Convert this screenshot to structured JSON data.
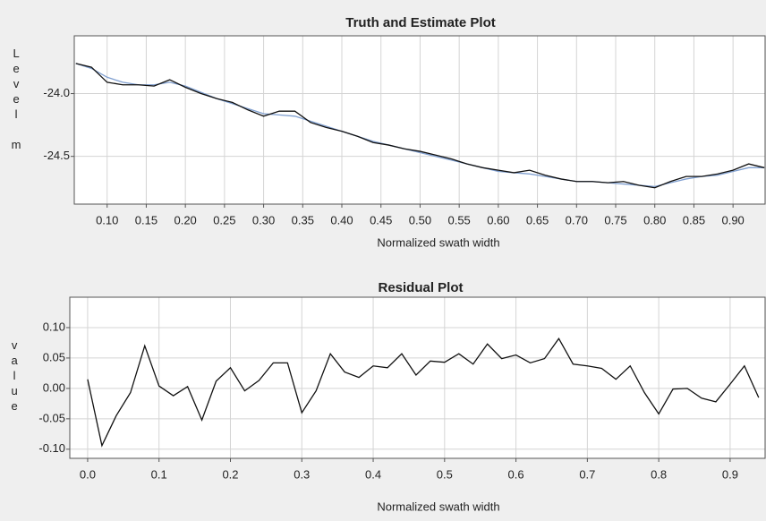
{
  "chart_data": [
    {
      "type": "line",
      "title": "Truth and Estimate Plot",
      "y_label": "Level m",
      "x_label": "Normalized swath width",
      "x": [
        0.06,
        0.08,
        0.1,
        0.12,
        0.14,
        0.16,
        0.18,
        0.2,
        0.22,
        0.24,
        0.26,
        0.28,
        0.3,
        0.32,
        0.34,
        0.36,
        0.38,
        0.4,
        0.42,
        0.44,
        0.46,
        0.48,
        0.5,
        0.52,
        0.54,
        0.56,
        0.58,
        0.6,
        0.62,
        0.64,
        0.66,
        0.68,
        0.7,
        0.72,
        0.74,
        0.76,
        0.78,
        0.8,
        0.82,
        0.84,
        0.86,
        0.88,
        0.9,
        0.92,
        0.94
      ],
      "series": [
        {
          "color": "#7f9fd0",
          "values": [
            -23.76,
            -23.8,
            -23.87,
            -23.91,
            -23.93,
            -23.93,
            -23.91,
            -23.94,
            -23.99,
            -24.04,
            -24.08,
            -24.12,
            -24.16,
            -24.17,
            -24.18,
            -24.22,
            -24.26,
            -24.3,
            -24.34,
            -24.38,
            -24.41,
            -24.44,
            -24.47,
            -24.5,
            -24.53,
            -24.56,
            -24.59,
            -24.62,
            -24.63,
            -24.64,
            -24.66,
            -24.68,
            -24.7,
            -24.7,
            -24.71,
            -24.72,
            -24.73,
            -24.74,
            -24.71,
            -24.68,
            -24.66,
            -24.65,
            -24.62,
            -24.59,
            -24.59
          ]
        },
        {
          "color": "#111111",
          "values": [
            -23.76,
            -23.79,
            -23.91,
            -23.93,
            -23.93,
            -23.94,
            -23.89,
            -23.95,
            -24.0,
            -24.04,
            -24.07,
            -24.13,
            -24.18,
            -24.14,
            -24.14,
            -24.23,
            -24.27,
            -24.3,
            -24.34,
            -24.39,
            -24.41,
            -24.44,
            -24.46,
            -24.49,
            -24.52,
            -24.56,
            -24.59,
            -24.61,
            -24.63,
            -24.61,
            -24.65,
            -24.68,
            -24.7,
            -24.7,
            -24.71,
            -24.7,
            -24.73,
            -24.75,
            -24.7,
            -24.66,
            -24.66,
            -24.64,
            -24.61,
            -24.56,
            -24.59
          ]
        }
      ],
      "xlim": [
        0.058,
        0.941
      ],
      "ylim": [
        -24.88,
        -23.54
      ],
      "xticks": [
        {
          "value": 0.1,
          "label": "0.10"
        },
        0.15,
        {
          "value": 0.2,
          "label": "0.20"
        },
        0.25,
        {
          "value": 0.3,
          "label": "0.30"
        },
        0.35,
        {
          "value": 0.4,
          "label": "0.40"
        },
        0.45,
        {
          "value": 0.5,
          "label": "0.50"
        },
        0.55,
        {
          "value": 0.6,
          "label": "0.60"
        },
        0.65,
        {
          "value": 0.7,
          "label": "0.70"
        },
        0.75,
        {
          "value": 0.8,
          "label": "0.80"
        },
        0.85,
        {
          "value": 0.9,
          "label": "0.90"
        }
      ],
      "yticks": [
        {
          "value": -24,
          "label": "-24.0"
        },
        {
          "value": -24.5,
          "label": "-24.5"
        }
      ],
      "grid": true
    },
    {
      "type": "line",
      "title": "Residual Plot",
      "y_label": "value",
      "x_label": "Normalized swath width",
      "x": [
        0.0,
        0.02,
        0.04,
        0.06,
        0.08,
        0.1,
        0.12,
        0.14,
        0.16,
        0.18,
        0.2,
        0.22,
        0.24,
        0.26,
        0.28,
        0.3,
        0.32,
        0.34,
        0.36,
        0.38,
        0.4,
        0.42,
        0.44,
        0.46,
        0.48,
        0.5,
        0.52,
        0.54,
        0.56,
        0.58,
        0.6,
        0.62,
        0.64,
        0.66,
        0.68,
        0.7,
        0.72,
        0.74,
        0.76,
        0.78,
        0.8,
        0.82,
        0.84,
        0.86,
        0.88,
        0.9,
        0.92,
        0.94
      ],
      "series": [
        {
          "color": "#111111",
          "values": [
            0.015,
            -0.094,
            -0.045,
            -0.007,
            0.07,
            0.004,
            -0.012,
            0.003,
            -0.052,
            0.012,
            0.034,
            -0.004,
            0.013,
            0.042,
            0.042,
            -0.04,
            -0.004,
            0.057,
            0.027,
            0.018,
            0.037,
            0.034,
            0.057,
            0.022,
            0.045,
            0.043,
            0.057,
            0.04,
            0.073,
            0.049,
            0.055,
            0.042,
            0.049,
            0.082,
            0.04,
            0.037,
            0.033,
            0.015,
            0.037,
            -0.007,
            -0.042,
            -0.001,
            0,
            -0.016,
            -0.022,
            0.007,
            0.037,
            -0.015
          ]
        }
      ],
      "xlim": [
        -0.025,
        0.949
      ],
      "ylim": [
        -0.115,
        0.15
      ],
      "xticks": [
        {
          "value": 0,
          "label": "0.0"
        },
        0.1,
        0.2,
        0.3,
        0.4,
        0.5,
        0.6,
        0.7,
        0.8,
        0.9
      ],
      "yticks": [
        {
          "value": 0.1,
          "label": "0.10"
        },
        {
          "value": 0.05,
          "label": "0.05"
        },
        {
          "value": 0,
          "label": "0.00"
        },
        {
          "value": -0.05,
          "label": "-0.05"
        },
        {
          "value": -0.1,
          "label": "-0.10"
        }
      ],
      "grid": true
    }
  ]
}
